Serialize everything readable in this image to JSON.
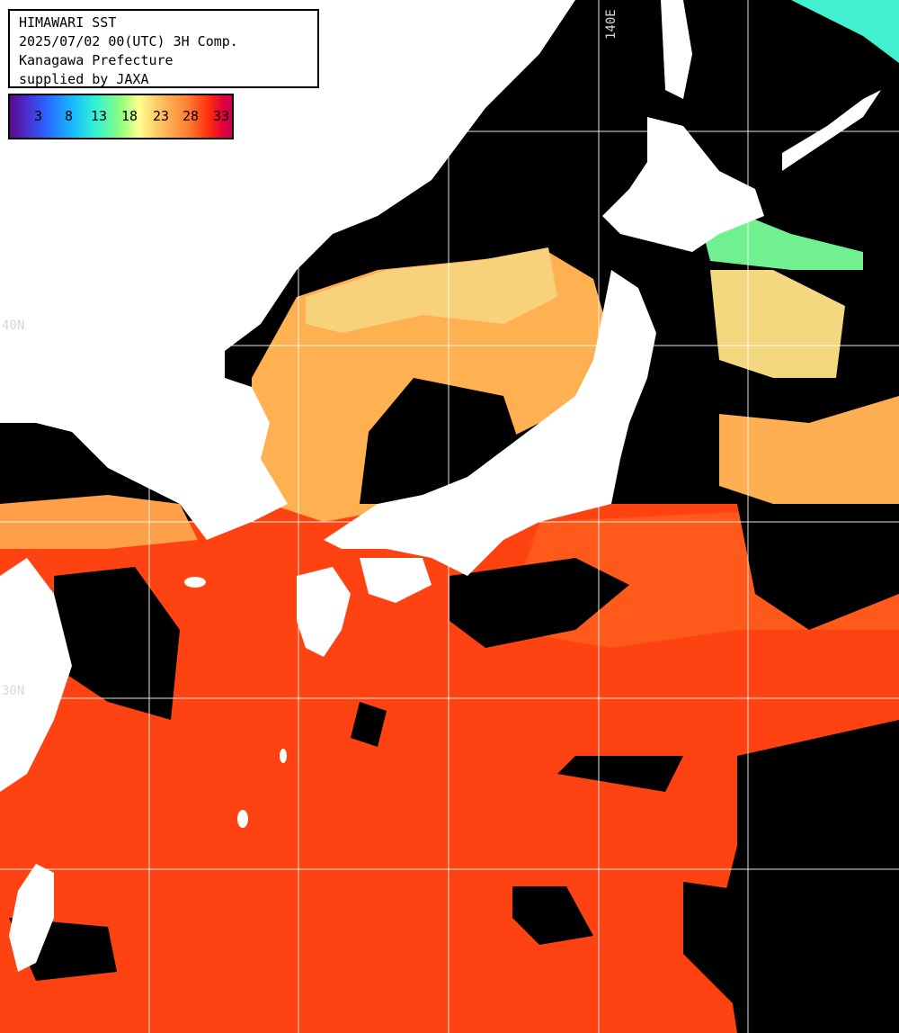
{
  "header": {
    "line1": "HIMAWARI SST",
    "line2": "2025/07/02 00(UTC) 3H Comp.",
    "line3": "Kanagawa Prefecture",
    "line4": "supplied by JAXA"
  },
  "legend": {
    "ticks": [
      "3",
      "8",
      "13",
      "18",
      "23",
      "28",
      "33"
    ]
  },
  "grid_labels": {
    "lon_140": "140E",
    "lat_40": "40N",
    "lat_30": "30N"
  },
  "colors": {
    "cloud": "#000000",
    "land": "#ffffff",
    "warm_sea": "#ff4a10",
    "mild_sea": "#ffb050",
    "cool_sea": "#f8e080",
    "cold_sea": "#60ff90",
    "grid": "#ffffff"
  }
}
